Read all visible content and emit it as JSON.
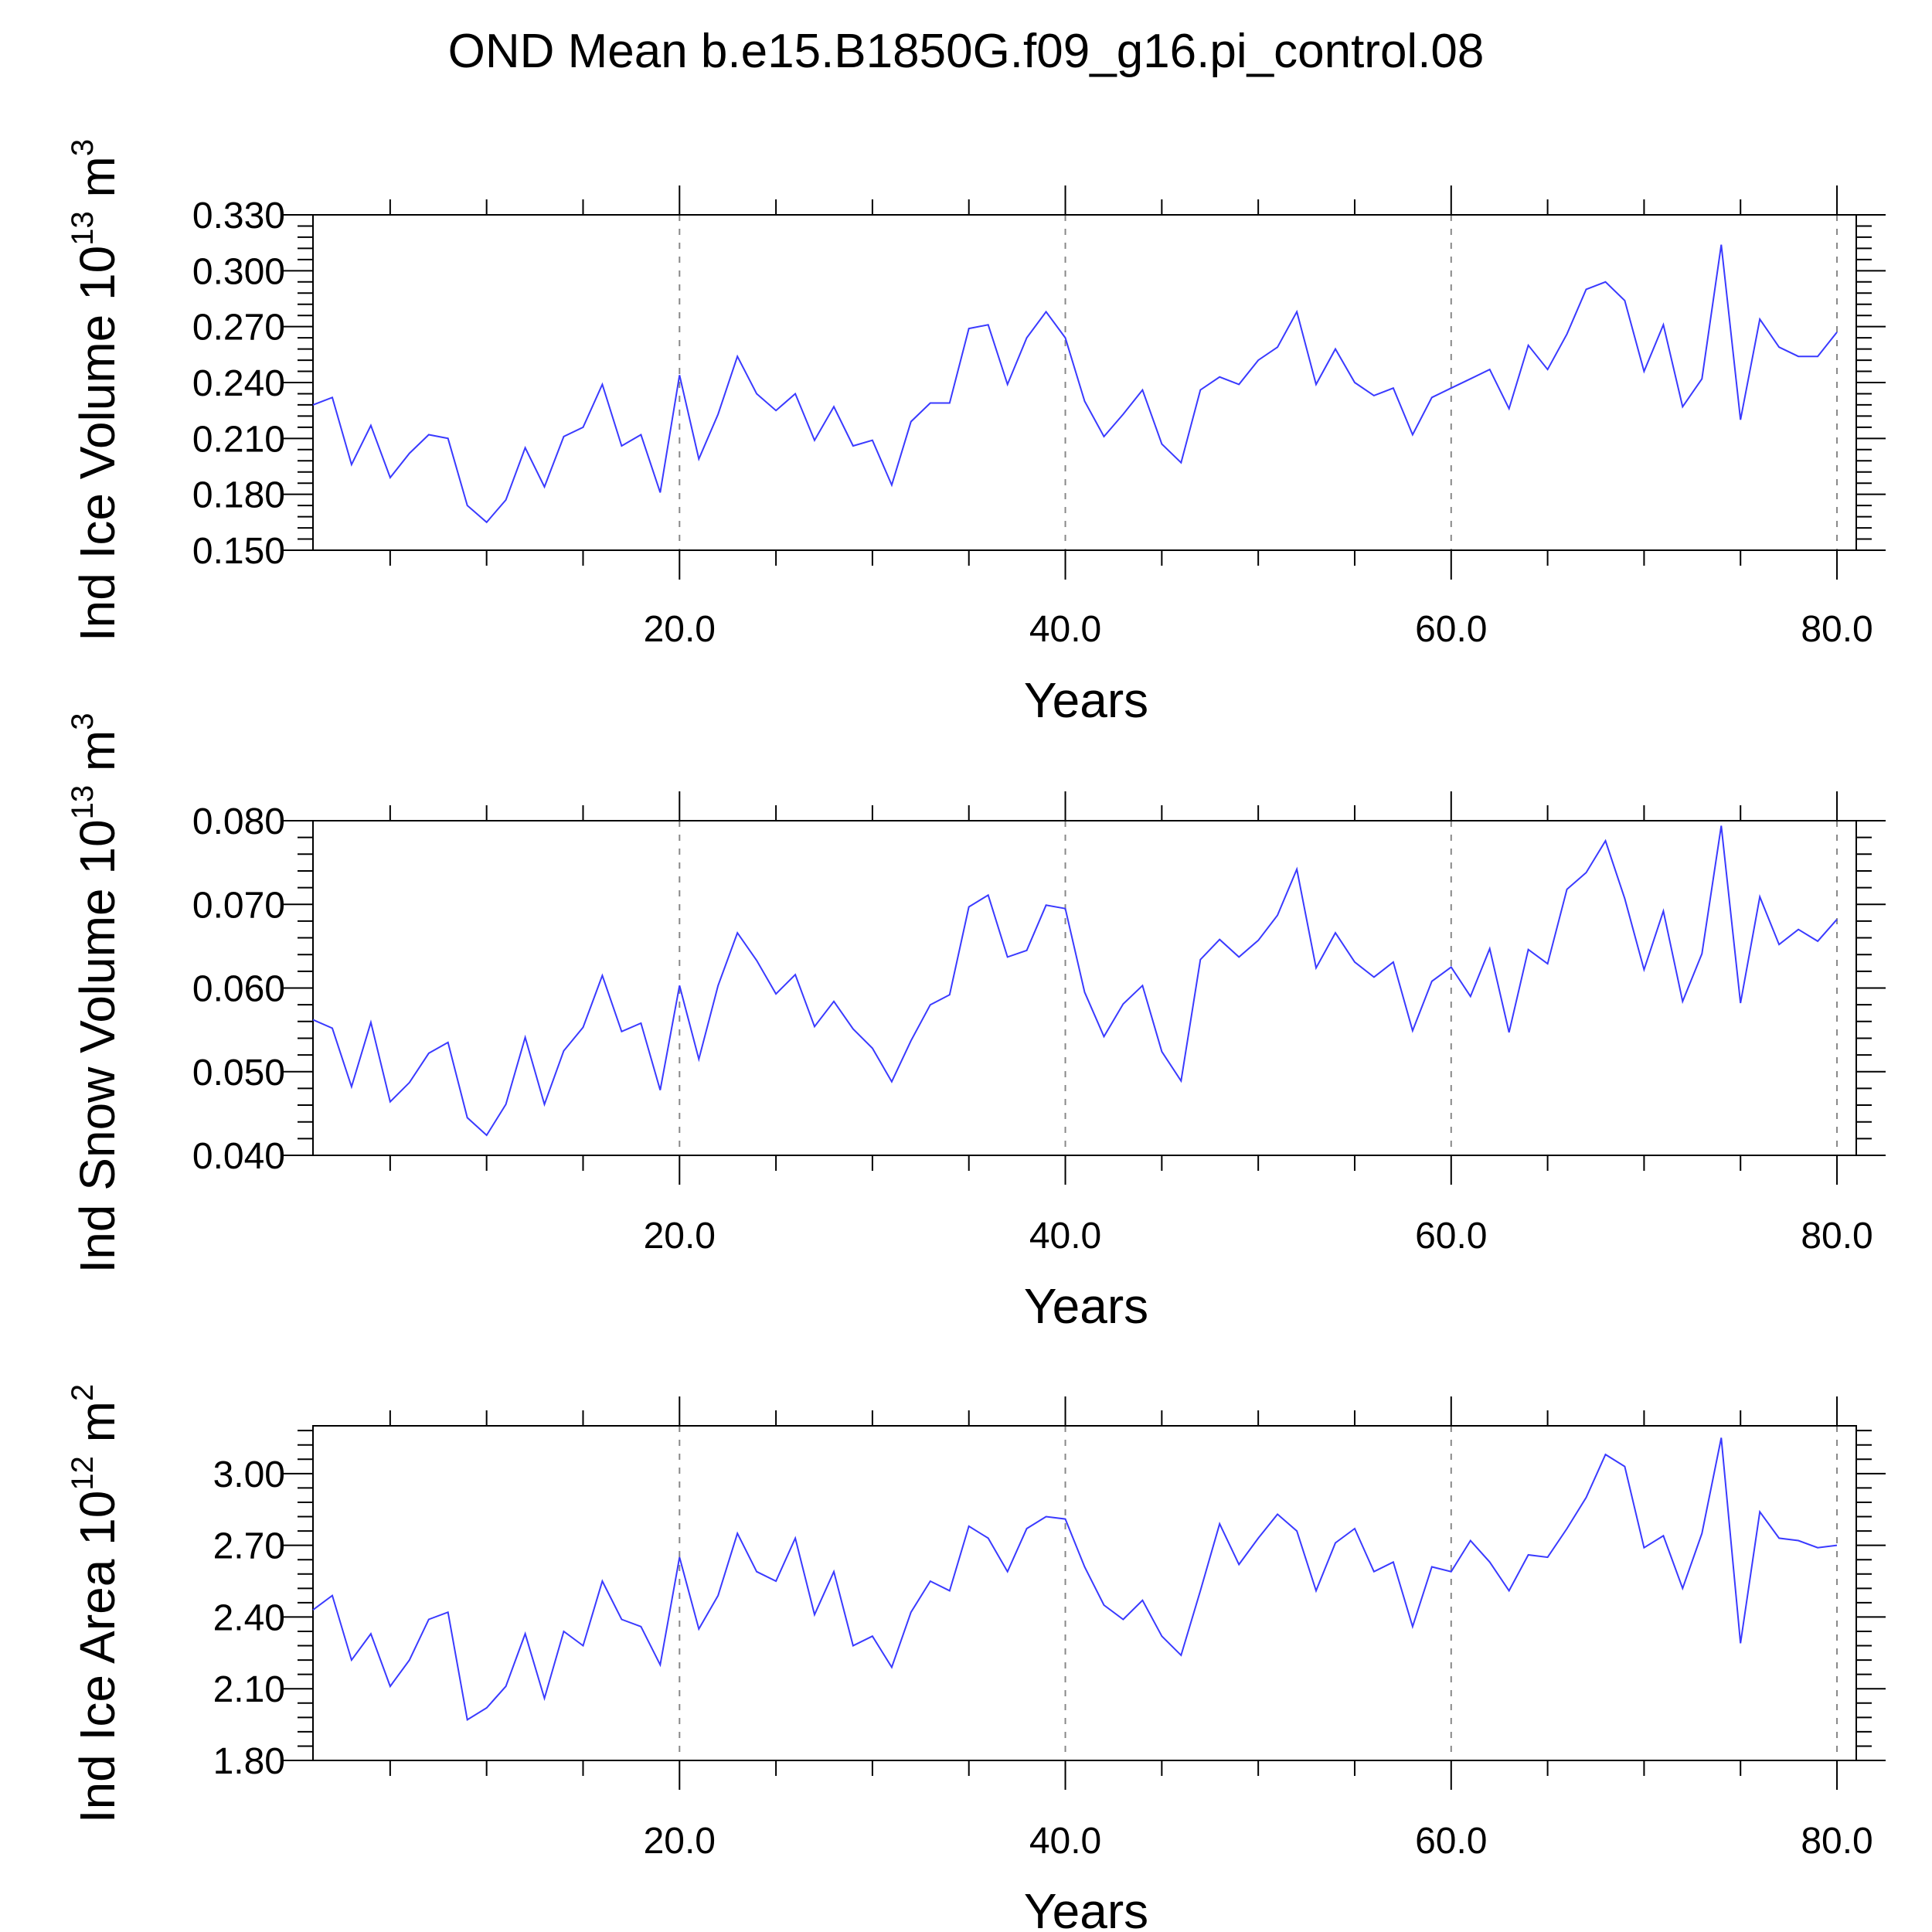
{
  "title": "OND Mean b.e15.B1850G.f09_g16.pi_control.08",
  "colors": {
    "line": "#3a3aff",
    "axis": "#000000",
    "grid": "#888888"
  },
  "chart_data": [
    {
      "type": "line",
      "name": "ice-volume",
      "ylabel_main": "Ind Ice Volume 10",
      "ylabel_sup": "13",
      "ylabel_unit": " m",
      "ylabel_unit_sup": "3",
      "xlabel": "Years",
      "xlim": [
        1,
        81
      ],
      "ylim": [
        0.15,
        0.33
      ],
      "yticks": [
        "0.150",
        "0.180",
        "0.210",
        "0.240",
        "0.270",
        "0.300",
        "0.330"
      ],
      "xticks": [
        "20.0",
        "40.0",
        "60.0",
        "80.0"
      ],
      "x_start": 1,
      "values": [
        0.228,
        0.232,
        0.196,
        0.217,
        0.189,
        0.202,
        0.212,
        0.21,
        0.174,
        0.165,
        0.177,
        0.205,
        0.184,
        0.211,
        0.216,
        0.239,
        0.206,
        0.212,
        0.181,
        0.244,
        0.199,
        0.223,
        0.254,
        0.234,
        0.225,
        0.234,
        0.209,
        0.227,
        0.206,
        0.209,
        0.185,
        0.219,
        0.229,
        0.229,
        0.269,
        0.271,
        0.239,
        0.264,
        0.278,
        0.264,
        0.23,
        0.211,
        0.223,
        0.236,
        0.207,
        0.197,
        0.236,
        0.243,
        0.239,
        0.252,
        0.259,
        0.278,
        0.239,
        0.258,
        0.24,
        0.233,
        0.237,
        0.212,
        0.232,
        0.237,
        0.242,
        0.247,
        0.226,
        0.26,
        0.247,
        0.266,
        0.29,
        0.294,
        0.284,
        0.246,
        0.271,
        0.227,
        0.242,
        0.314,
        0.22,
        0.274,
        0.259,
        0.254,
        0.254,
        0.267
      ]
    },
    {
      "type": "line",
      "name": "snow-volume",
      "ylabel_main": "Ind Snow Volume 10",
      "ylabel_sup": "13",
      "ylabel_unit": " m",
      "ylabel_unit_sup": "3",
      "xlabel": "Years",
      "xlim": [
        1,
        81
      ],
      "ylim": [
        0.04,
        0.08
      ],
      "yticks": [
        "0.040",
        "0.050",
        "0.060",
        "0.070",
        "0.080"
      ],
      "xticks": [
        "20.0",
        "40.0",
        "60.0",
        "80.0"
      ],
      "x_start": 1,
      "values": [
        0.0562,
        0.0552,
        0.0482,
        0.0559,
        0.0464,
        0.0487,
        0.0522,
        0.0535,
        0.0445,
        0.0424,
        0.0461,
        0.0541,
        0.0461,
        0.0525,
        0.0553,
        0.0615,
        0.0548,
        0.0558,
        0.0478,
        0.0603,
        0.0515,
        0.0603,
        0.0666,
        0.0633,
        0.0593,
        0.0616,
        0.0554,
        0.0584,
        0.0551,
        0.0528,
        0.0488,
        0.0537,
        0.058,
        0.0592,
        0.0697,
        0.0711,
        0.0637,
        0.0645,
        0.0699,
        0.0695,
        0.0595,
        0.0542,
        0.0581,
        0.0603,
        0.0524,
        0.0489,
        0.0634,
        0.0658,
        0.0637,
        0.0657,
        0.0687,
        0.0742,
        0.0624,
        0.0666,
        0.0631,
        0.0613,
        0.0631,
        0.0549,
        0.0608,
        0.0625,
        0.059,
        0.0647,
        0.0547,
        0.0646,
        0.0629,
        0.0718,
        0.0738,
        0.0776,
        0.0707,
        0.0622,
        0.0692,
        0.0584,
        0.0641,
        0.0794,
        0.0582,
        0.0709,
        0.0652,
        0.067,
        0.0656,
        0.0682
      ]
    },
    {
      "type": "line",
      "name": "ice-area",
      "ylabel_main": "Ind Ice Area 10",
      "ylabel_sup": "12",
      "ylabel_unit": " m",
      "ylabel_unit_sup": "2",
      "xlabel": "Years",
      "xlim": [
        1,
        81
      ],
      "ylim": [
        1.8,
        3.2
      ],
      "yticks": [
        "1.80",
        "2.10",
        "2.40",
        "2.70",
        "3.00"
      ],
      "xticks": [
        "20.0",
        "40.0",
        "60.0",
        "80.0"
      ],
      "x_start": 1,
      "values": [
        2.43,
        2.49,
        2.22,
        2.33,
        2.11,
        2.22,
        2.39,
        2.42,
        1.97,
        2.02,
        2.11,
        2.33,
        2.06,
        2.34,
        2.28,
        2.55,
        2.39,
        2.36,
        2.2,
        2.65,
        2.35,
        2.49,
        2.75,
        2.59,
        2.55,
        2.73,
        2.41,
        2.59,
        2.28,
        2.32,
        2.19,
        2.42,
        2.55,
        2.51,
        2.78,
        2.73,
        2.59,
        2.77,
        2.82,
        2.81,
        2.61,
        2.45,
        2.39,
        2.47,
        2.32,
        2.24,
        2.51,
        2.79,
        2.62,
        2.73,
        2.83,
        2.76,
        2.51,
        2.71,
        2.77,
        2.59,
        2.63,
        2.36,
        2.61,
        2.59,
        2.72,
        2.63,
        2.51,
        2.66,
        2.65,
        2.77,
        2.9,
        3.08,
        3.03,
        2.69,
        2.74,
        2.52,
        2.75,
        3.15,
        2.29,
        2.84,
        2.73,
        2.72,
        2.69,
        2.7
      ]
    }
  ]
}
